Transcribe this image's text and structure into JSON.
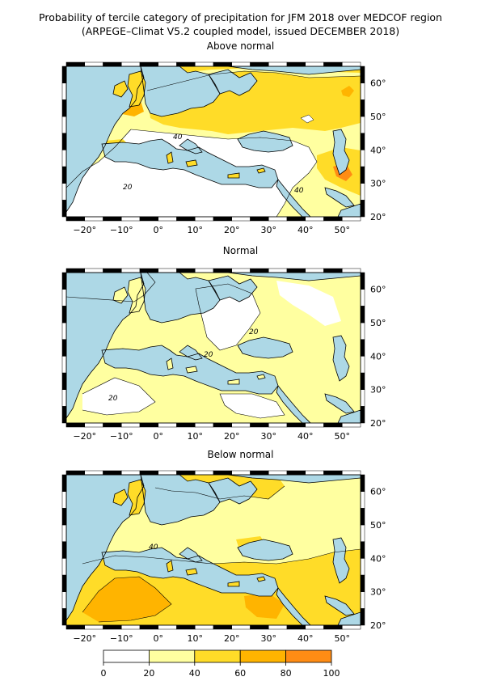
{
  "title_line1": "Probability of tercile category of precipitation for JFM 2018 over MEDCOF region",
  "title_line2": "(ARPEGE–Climat V5.2 coupled model, issued DECEMBER 2018)",
  "panels": [
    {
      "title": "Above normal",
      "contour_labels": [
        "40",
        "20",
        "40"
      ]
    },
    {
      "title": "Normal",
      "contour_labels": [
        "20",
        "20",
        "20"
      ]
    },
    {
      "title": "Below normal",
      "contour_labels": [
        "40"
      ]
    }
  ],
  "lon_ticks": [
    "−20°",
    "−10°",
    "0°",
    "10°",
    "20°",
    "30°",
    "40°",
    "50°"
  ],
  "lat_ticks": [
    "60°",
    "50°",
    "40°",
    "30°",
    "20°"
  ],
  "colorbar": {
    "labels": [
      "0",
      "20",
      "40",
      "60",
      "80",
      "100"
    ],
    "colors": [
      "#ffffff",
      "#ffffa0",
      "#ffdc28",
      "#ffb400",
      "#ff8c14",
      "#ff6414"
    ]
  },
  "colors": {
    "sea": "#add8e6",
    "land_low": "#ffffff"
  }
}
